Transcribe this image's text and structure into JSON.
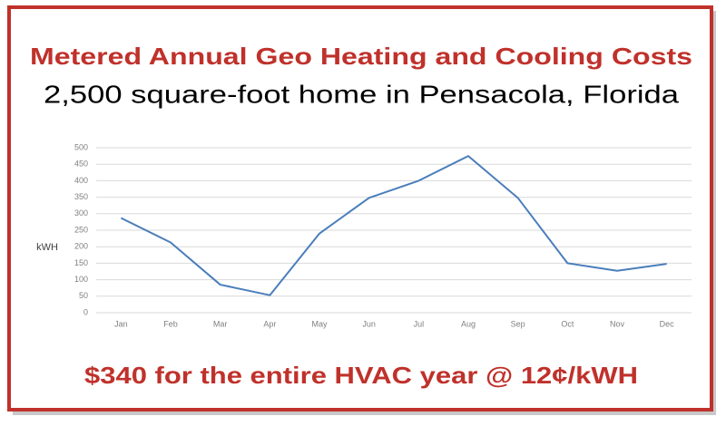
{
  "chart_data": {
    "type": "line",
    "title": "Metered Annual Geo Heating and Cooling Costs",
    "subtitle": "2,500 square-foot home in Pensacola, Florida",
    "y_label": "kWH",
    "annotation": "$340 for the entire HVAC year @ 12¢/kWH",
    "categories": [
      "Jan",
      "Feb",
      "Mar",
      "Apr",
      "May",
      "Jun",
      "Jul",
      "Aug",
      "Sep",
      "Oct",
      "Nov",
      "Dec"
    ],
    "values": [
      287,
      213,
      85,
      53,
      240,
      348,
      400,
      475,
      348,
      150,
      127,
      148
    ],
    "color": "#4a7ebb",
    "ylim": [
      0,
      500
    ],
    "yticks": [
      0,
      50,
      100,
      150,
      200,
      250,
      300,
      350,
      400,
      450,
      500
    ],
    "grid": true
  }
}
